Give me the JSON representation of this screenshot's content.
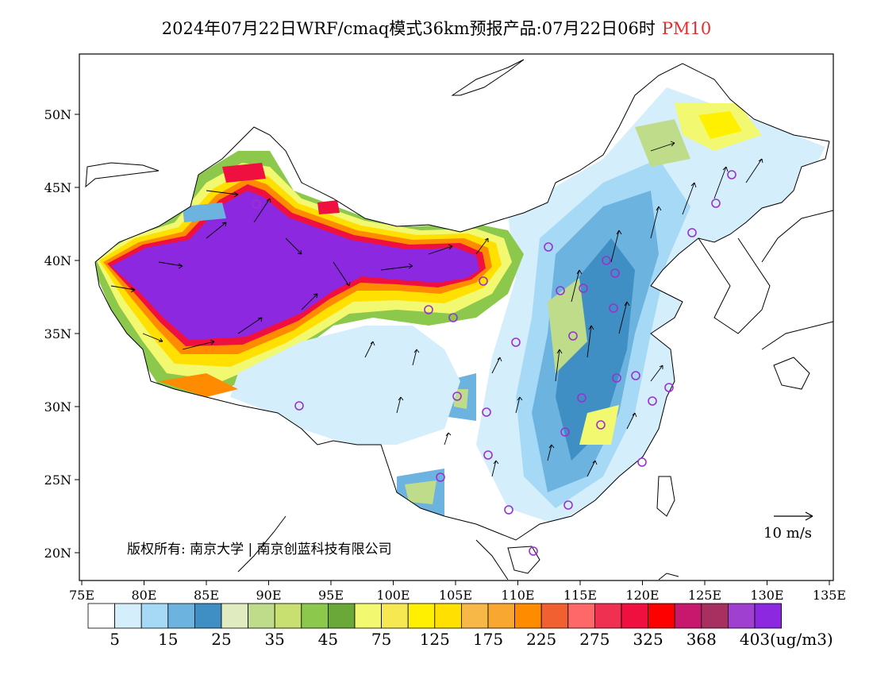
{
  "title": {
    "main": "2024年07月22日WRF/cmaq模式36km预报产品:07月22日06时",
    "variable": "PM10"
  },
  "map": {
    "lon_labels": [
      "75E",
      "80E",
      "85E",
      "90E",
      "95E",
      "100E",
      "105E",
      "110E",
      "115E",
      "120E",
      "125E",
      "130E",
      "135E"
    ],
    "lat_labels": [
      "50N",
      "45N",
      "40N",
      "35N",
      "30N",
      "25N",
      "20N"
    ],
    "copyright": "版权所有: 南京大学 | 南京创蓝科技有限公司",
    "wind_reference": "10 m/s"
  },
  "legend": {
    "colors": [
      "#ffffff",
      "#d4eefb",
      "#a5d9f5",
      "#6cb3e0",
      "#3f8fc4",
      "#e0ecc0",
      "#bfdc8a",
      "#c8e070",
      "#8cc84c",
      "#6aa83a",
      "#f2f870",
      "#f5e850",
      "#fff000",
      "#ffe000",
      "#f8b848",
      "#f8a830",
      "#ff8c00",
      "#f06030",
      "#ff6868",
      "#f03050",
      "#f01040",
      "#ff0000",
      "#c8186e",
      "#a83060",
      "#a040d0",
      "#8c28e0"
    ],
    "labels": [
      "5",
      "15",
      "25",
      "35",
      "45",
      "75",
      "125",
      "175",
      "225",
      "275",
      "325",
      "368",
      "403"
    ],
    "unit": "(ug/m3)"
  }
}
